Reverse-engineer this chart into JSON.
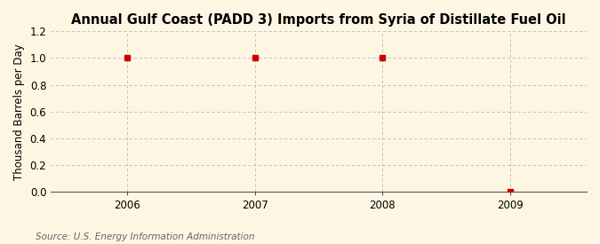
{
  "title": "Annual Gulf Coast (PADD 3) Imports from Syria of Distillate Fuel Oil",
  "ylabel": "Thousand Barrels per Day",
  "source": "Source: U.S. Energy Information Administration",
  "x_values": [
    2006,
    2007,
    2008,
    2009
  ],
  "y_values": [
    1.0,
    1.0,
    1.0,
    0.0
  ],
  "xlim": [
    2005.4,
    2009.6
  ],
  "ylim": [
    0.0,
    1.2
  ],
  "yticks": [
    0.0,
    0.2,
    0.4,
    0.6,
    0.8,
    1.0,
    1.2
  ],
  "xticks": [
    2006,
    2007,
    2008,
    2009
  ],
  "marker_color": "#cc0000",
  "marker": "s",
  "marker_size": 4,
  "grid_color": "#bbbbbb",
  "background_color": "#fdf6e3",
  "title_fontsize": 10.5,
  "label_fontsize": 8.5,
  "tick_fontsize": 8.5,
  "source_fontsize": 7.5
}
